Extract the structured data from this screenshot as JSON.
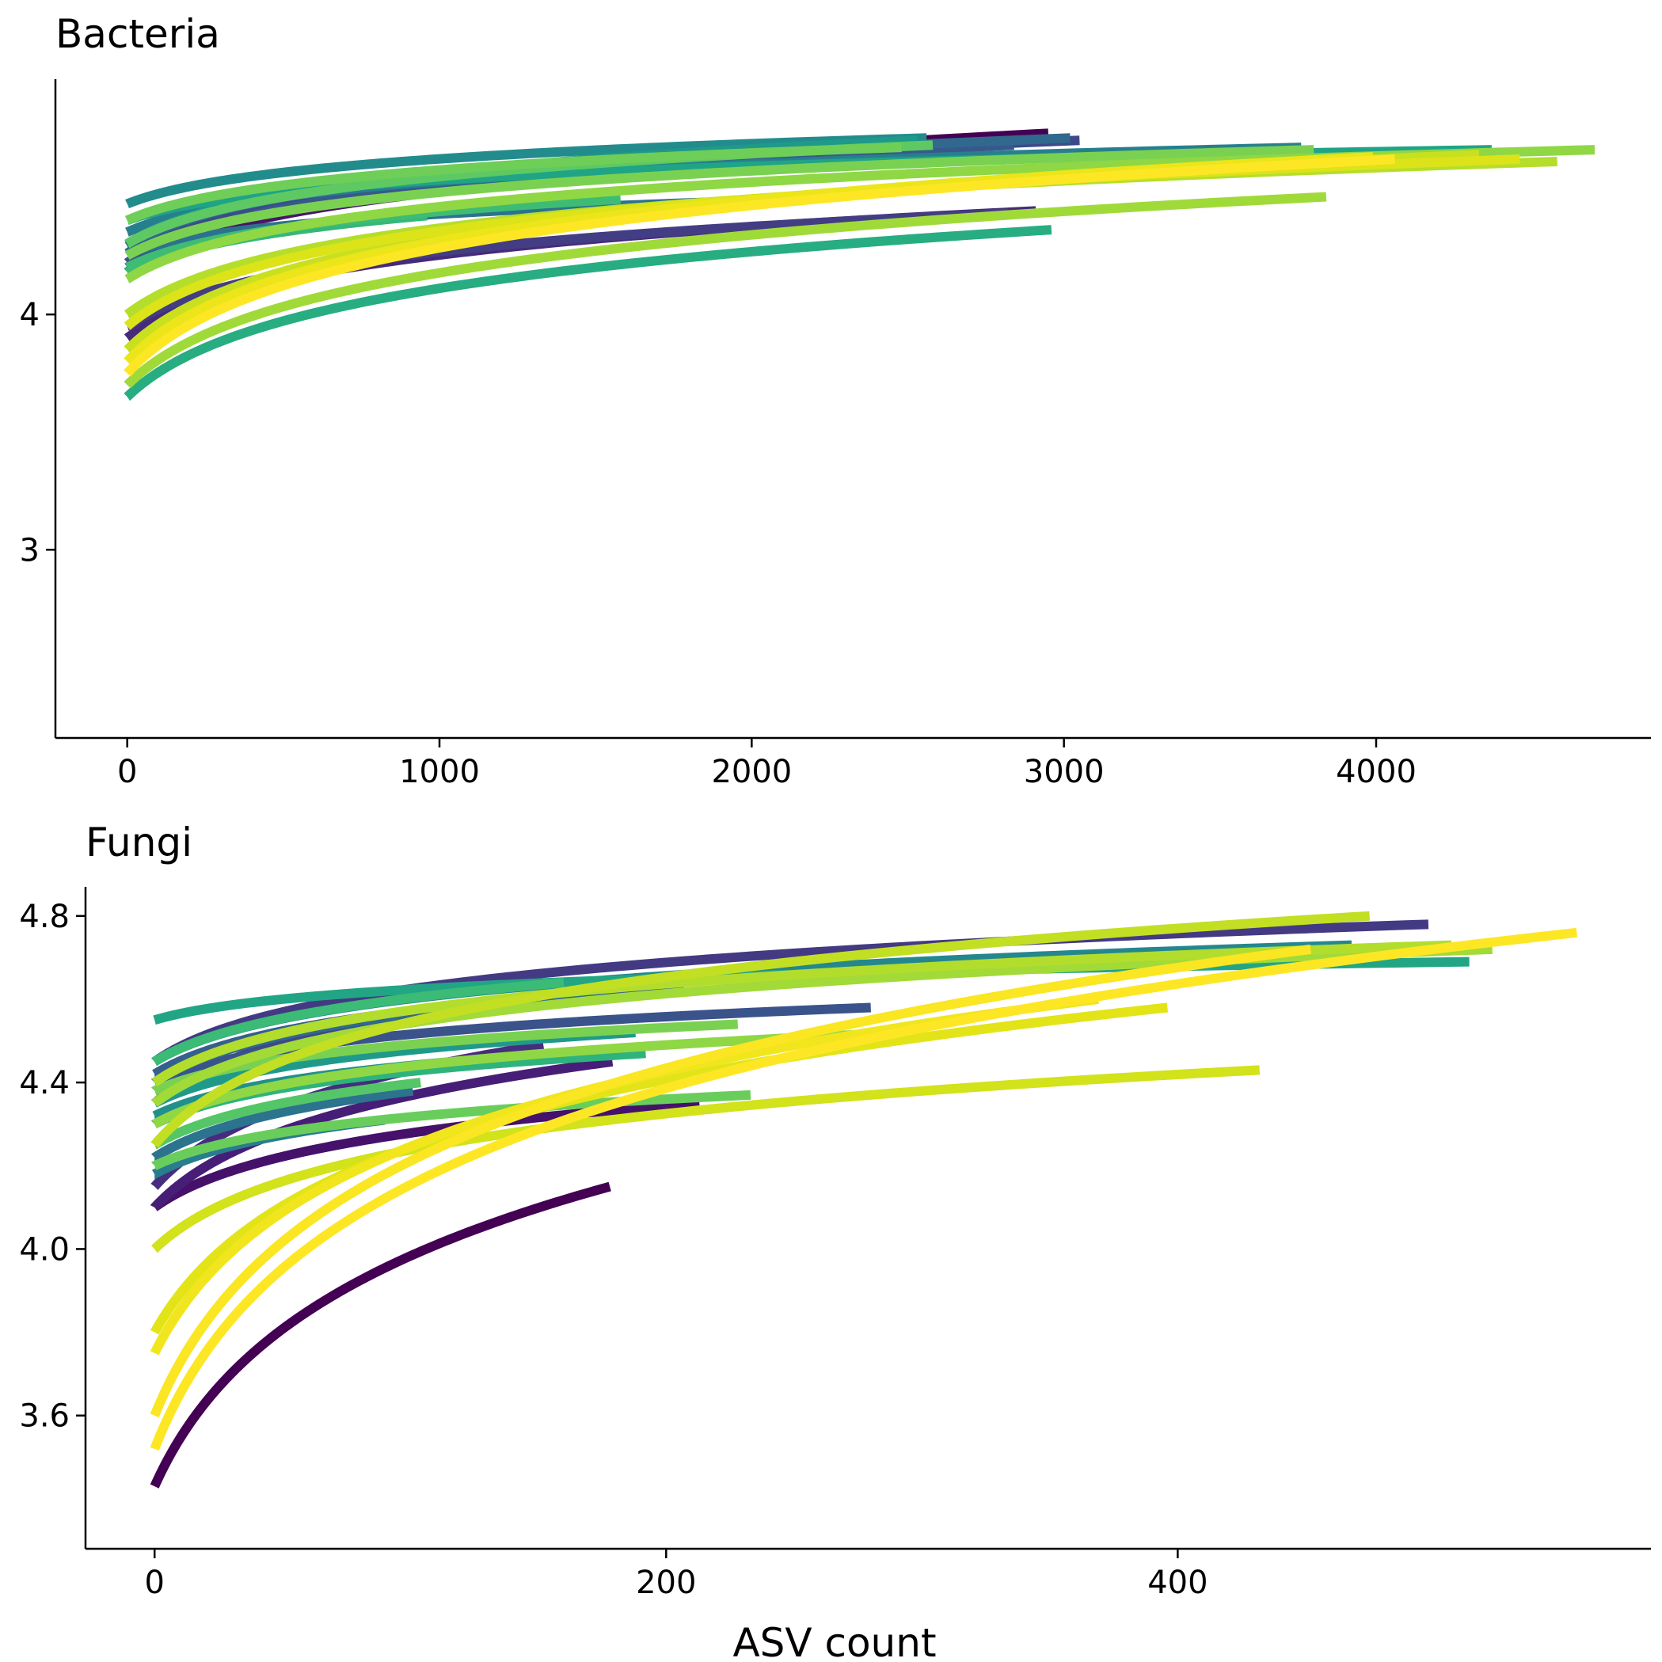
{
  "xlabel": "ASV count",
  "chart_data": [
    {
      "type": "line",
      "title": "Bacteria",
      "xlabel": "",
      "ylabel": "",
      "xlim": [
        -230,
        4880
      ],
      "ylim": [
        2.2,
        5.0
      ],
      "xticks": [
        0,
        1000,
        2000,
        3000,
        4000
      ],
      "xtick_labels": [
        "0",
        "1000",
        "2000",
        "3000",
        "4000"
      ],
      "yticks": [
        3,
        4
      ],
      "ytick_labels": [
        "3",
        "4"
      ],
      "grid": false,
      "legend": "none",
      "series": [
        {
          "xmax": 2950,
          "start": 4.18,
          "end": 4.77,
          "color": "#440154"
        },
        {
          "xmax": 2540,
          "start": 4.2,
          "end": 4.67,
          "color": "#481668"
        },
        {
          "xmax": 2910,
          "start": 3.9,
          "end": 4.44,
          "color": "#472A7A"
        },
        {
          "xmax": 2820,
          "start": 3.95,
          "end": 4.43,
          "color": "#433D84"
        },
        {
          "xmax": 3050,
          "start": 4.26,
          "end": 4.74,
          "color": "#3E4989"
        },
        {
          "xmax": 2840,
          "start": 4.22,
          "end": 4.72,
          "color": "#38588C"
        },
        {
          "xmax": 3020,
          "start": 4.29,
          "end": 4.75,
          "color": "#31688E"
        },
        {
          "xmax": 1930,
          "start": 4.26,
          "end": 4.48,
          "color": "#2C728E"
        },
        {
          "xmax": 3760,
          "start": 4.35,
          "end": 4.71,
          "color": "#277F8E"
        },
        {
          "xmax": 2560,
          "start": 4.47,
          "end": 4.75,
          "color": "#228C8D"
        },
        {
          "xmax": 2530,
          "start": 4.3,
          "end": 4.74,
          "color": "#1F998A"
        },
        {
          "xmax": 4370,
          "start": 4.4,
          "end": 4.7,
          "color": "#20A486"
        },
        {
          "xmax": 2960,
          "start": 3.65,
          "end": 4.36,
          "color": "#27AD81"
        },
        {
          "xmax": 960,
          "start": 4.18,
          "end": 4.42,
          "color": "#35B779"
        },
        {
          "xmax": 1580,
          "start": 4.2,
          "end": 4.49,
          "color": "#3FBC73"
        },
        {
          "xmax": 2580,
          "start": 4.3,
          "end": 4.72,
          "color": "#5EC962"
        },
        {
          "xmax": 2480,
          "start": 4.4,
          "end": 4.71,
          "color": "#6ECE58"
        },
        {
          "xmax": 3800,
          "start": 4.25,
          "end": 4.7,
          "color": "#7AD151"
        },
        {
          "xmax": 4700,
          "start": 4.15,
          "end": 4.7,
          "color": "#8FD744"
        },
        {
          "xmax": 3840,
          "start": 3.7,
          "end": 4.5,
          "color": "#A0DA39"
        },
        {
          "xmax": 4580,
          "start": 4.0,
          "end": 4.65,
          "color": "#B5DE2B"
        },
        {
          "xmax": 4330,
          "start": 3.85,
          "end": 4.68,
          "color": "#C8E020"
        },
        {
          "xmax": 4460,
          "start": 3.95,
          "end": 4.66,
          "color": "#DCE319"
        },
        {
          "xmax": 3990,
          "start": 3.8,
          "end": 4.67,
          "color": "#EBE51A"
        },
        {
          "xmax": 4060,
          "start": 3.75,
          "end": 4.66,
          "color": "#FDE725"
        }
      ]
    },
    {
      "type": "line",
      "title": "Fungi",
      "xlabel": "ASV count",
      "ylabel": "",
      "xlim": [
        -27,
        585
      ],
      "ylim": [
        3.28,
        4.87
      ],
      "xticks": [
        0,
        200,
        400
      ],
      "xtick_labels": [
        "0",
        "200",
        "400"
      ],
      "yticks": [
        3.6,
        4.0,
        4.4,
        4.8
      ],
      "ytick_labels": [
        "3.6",
        "4.0",
        "4.4",
        "4.8"
      ],
      "grid": false,
      "legend": "none",
      "series": [
        {
          "xmax": 178,
          "start": 3.43,
          "end": 4.15,
          "color": "#440154"
        },
        {
          "xmax": 213,
          "start": 4.1,
          "end": 4.35,
          "color": "#46116A"
        },
        {
          "xmax": 179,
          "start": 4.1,
          "end": 4.45,
          "color": "#471E77"
        },
        {
          "xmax": 152,
          "start": 4.15,
          "end": 4.49,
          "color": "#462D7E"
        },
        {
          "xmax": 498,
          "start": 4.45,
          "end": 4.78,
          "color": "#433A83"
        },
        {
          "xmax": 231,
          "start": 4.35,
          "end": 4.66,
          "color": "#3F4788"
        },
        {
          "xmax": 280,
          "start": 4.4,
          "end": 4.58,
          "color": "#3A538B"
        },
        {
          "xmax": 207,
          "start": 4.42,
          "end": 4.63,
          "color": "#355F8D"
        },
        {
          "xmax": 168,
          "start": 4.4,
          "end": 4.61,
          "color": "#306A8E"
        },
        {
          "xmax": 101,
          "start": 4.22,
          "end": 4.38,
          "color": "#2C738E"
        },
        {
          "xmax": 90,
          "start": 4.18,
          "end": 4.31,
          "color": "#287D8E"
        },
        {
          "xmax": 468,
          "start": 4.45,
          "end": 4.73,
          "color": "#24878E"
        },
        {
          "xmax": 160,
          "start": 4.32,
          "end": 4.47,
          "color": "#21908D"
        },
        {
          "xmax": 188,
          "start": 4.35,
          "end": 4.52,
          "color": "#1F9A8A"
        },
        {
          "xmax": 514,
          "start": 4.55,
          "end": 4.69,
          "color": "#22A585"
        },
        {
          "xmax": 192,
          "start": 4.3,
          "end": 4.47,
          "color": "#2EB37C"
        },
        {
          "xmax": 160,
          "start": 4.45,
          "end": 4.64,
          "color": "#3BBB75"
        },
        {
          "xmax": 104,
          "start": 4.25,
          "end": 4.4,
          "color": "#55C667"
        },
        {
          "xmax": 233,
          "start": 4.2,
          "end": 4.37,
          "color": "#69CD5B"
        },
        {
          "xmax": 228,
          "start": 4.38,
          "end": 4.54,
          "color": "#7AD151"
        },
        {
          "xmax": 293,
          "start": 4.3,
          "end": 4.52,
          "color": "#8FD744"
        },
        {
          "xmax": 523,
          "start": 4.35,
          "end": 4.72,
          "color": "#A2DA37"
        },
        {
          "xmax": 507,
          "start": 4.4,
          "end": 4.73,
          "color": "#B2DD2D"
        },
        {
          "xmax": 475,
          "start": 4.25,
          "end": 4.8,
          "color": "#C2DF23"
        },
        {
          "xmax": 432,
          "start": 4.0,
          "end": 4.43,
          "color": "#D2E21B"
        },
        {
          "xmax": 396,
          "start": 3.8,
          "end": 4.58,
          "color": "#E2E418"
        },
        {
          "xmax": 369,
          "start": 3.75,
          "end": 4.6,
          "color": "#F1E51D"
        },
        {
          "xmax": 556,
          "start": 3.52,
          "end": 4.76,
          "color": "#FDE725"
        },
        {
          "xmax": 452,
          "start": 3.6,
          "end": 4.72,
          "color": "#FAE622"
        }
      ]
    }
  ]
}
